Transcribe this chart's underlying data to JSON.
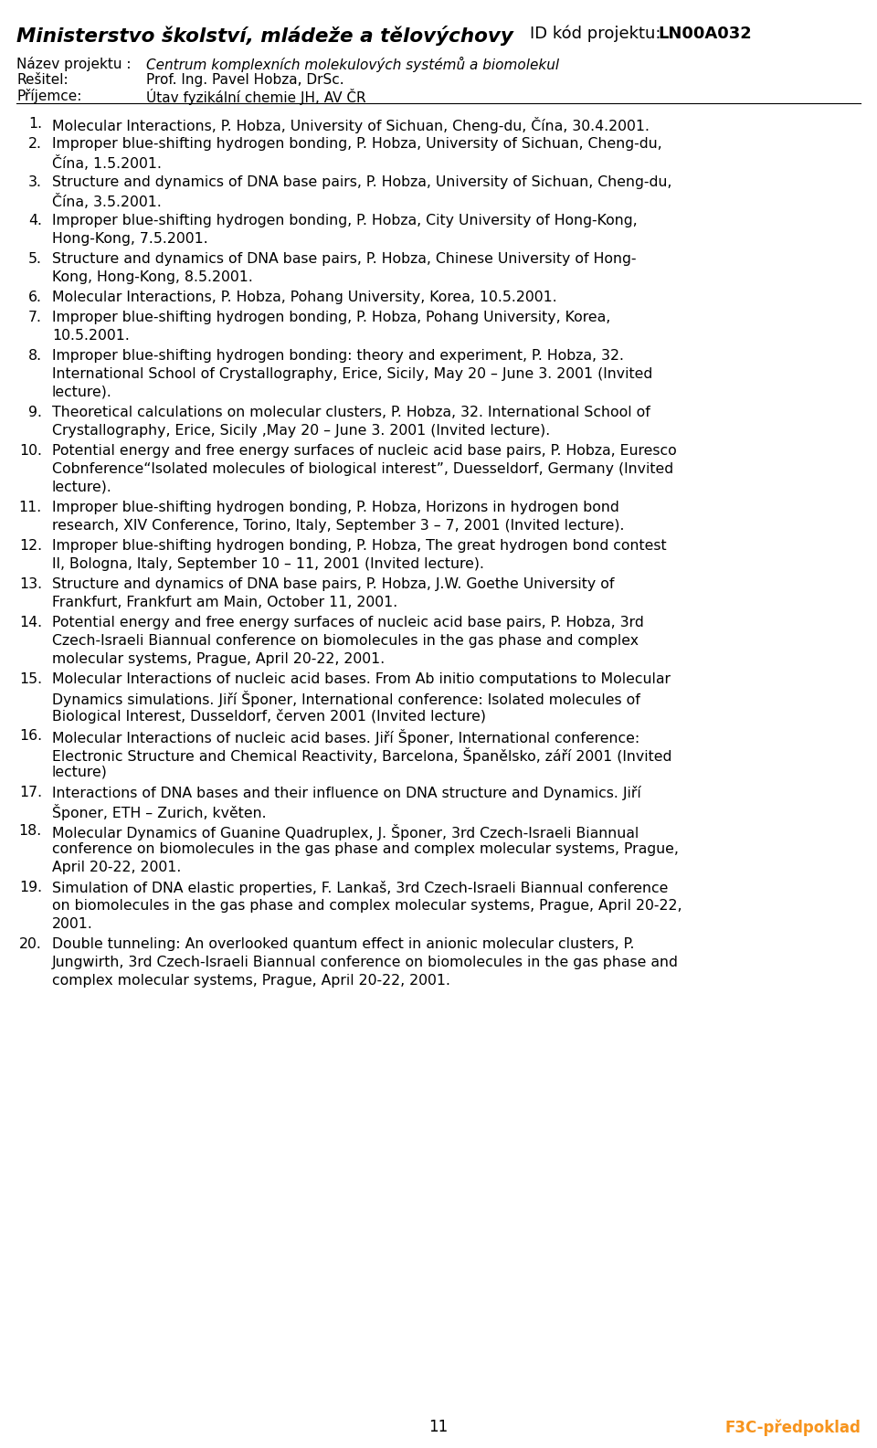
{
  "header_left_bold": "Ministerstvo školství, mládeže a tělovýchovy",
  "header_right_normal": "ID kód projektu: ",
  "header_right_bold": "LN00A032",
  "label1": "Název projektu :",
  "value1": "Centrum komplexních molekulových systémů a biomolekul",
  "label2": "Rešitel:",
  "value2": "Prof. Ing. Pavel Hobza, DrSc.",
  "label3": "Příjemce:",
  "value3": "Útav fyzikální chemie JH, AV ČR",
  "page_number": "11",
  "footer_right": "F3C-předpoklad",
  "bg_color": "#ffffff",
  "text_color": "#000000",
  "footer_color_right": "#F7941D",
  "items": [
    "Molecular Interactions, P. Hobza, University of Sichuan, Cheng-du, Čína, 30.4.2001.",
    "Improper blue-shifting hydrogen bonding, P. Hobza, University of Sichuan, Cheng-du,\nČína, 1.5.2001.",
    "Structure and dynamics of DNA base pairs, P. Hobza, University of Sichuan, Cheng-du,\nČína, 3.5.2001.",
    "Improper blue-shifting hydrogen bonding, P. Hobza, City University of Hong-Kong,\nHong-Kong, 7.5.2001.",
    "Structure and dynamics of DNA base pairs, P. Hobza, Chinese University of Hong-\nKong, Hong-Kong, 8.5.2001.",
    "Molecular Interactions, P. Hobza, Pohang University, Korea, 10.5.2001.",
    "Improper blue-shifting hydrogen bonding, P. Hobza, Pohang University, Korea,\n10.5.2001.",
    "Improper blue-shifting hydrogen bonding: theory and experiment, P. Hobza, 32.\nInternational School of Crystallography, Erice, Sicily, May 20 – June 3. 2001 (Invited\nlecture).",
    "Theoretical calculations on molecular clusters, P. Hobza, 32. International School of\nCrystallography, Erice, Sicily ,May 20 – June 3. 2001 (Invited lecture).",
    "Potential energy and free energy surfaces of nucleic acid base pairs, P. Hobza, Euresco\nCobnference“Isolated molecules of biological interest”, Duesseldorf, Germany (Invited\nlecture).",
    "Improper blue-shifting hydrogen bonding, P. Hobza, Horizons in hydrogen bond\nresearch, XIV Conference, Torino, Italy, September 3 – 7, 2001 (Invited lecture).",
    "Improper blue-shifting hydrogen bonding, P. Hobza, The great hydrogen bond contest\nII, Bologna, Italy, September 10 – 11, 2001 (Invited lecture).",
    "Structure and dynamics of DNA base pairs, P. Hobza, J.W. Goethe University of\nFrankfurt, Frankfurt am Main, October 11, 2001.",
    "Potential energy and free energy surfaces of nucleic acid base pairs, P. Hobza, 3rd\nCzech-Israeli Biannual conference on biomolecules in the gas phase and complex\nmolecular systems, Prague, April 20-22, 2001.",
    "Molecular Interactions of nucleic acid bases. From Ab initio computations to Molecular\nDynamics simulations. Jiří Šponer, International conference: Isolated molecules of\nBiological Interest, Dusseldorf, červen 2001 (Invited lecture)",
    "Molecular Interactions of nucleic acid bases. Jiří Šponer, International conference:\nElectronic Structure and Chemical Reactivity, Barcelona, Španělsko, září 2001 (Invited\nlecture)",
    "Interactions of DNA bases and their influence on DNA structure and Dynamics. Jiří\nŠponer, ETH – Zurich, květen.",
    "Molecular Dynamics of Guanine Quadruplex, J. Šponer, 3rd Czech-Israeli Biannual\nconference on biomolecules in the gas phase and complex molecular systems, Prague,\nApril 20-22, 2001.",
    "Simulation of DNA elastic properties, F. Lankaš, 3rd Czech-Israeli Biannual conference\non biomolecules in the gas phase and complex molecular systems, Prague, April 20-22,\n2001.",
    "Double tunneling: An overlooked quantum effect in anionic molecular clusters, P.\nJungwirth, 3rd Czech-Israeli Biannual conference on biomolecules in the gas phase and\ncomplex molecular systems, Prague, April 20-22, 2001."
  ]
}
